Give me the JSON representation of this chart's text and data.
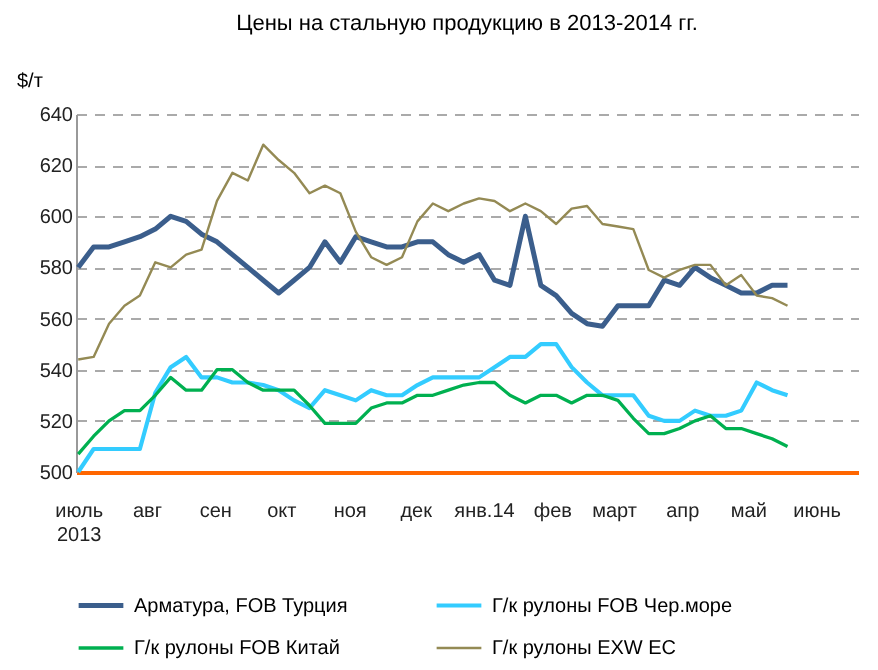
{
  "chart_data": {
    "type": "line",
    "title": "Цены на стальную продукцию в 2013-2014 гг.",
    "ylabel": "$/т",
    "x": [
      "2013-07-01",
      "2013-07-08",
      "2013-07-15",
      "2013-07-22",
      "2013-07-29",
      "2013-08-05",
      "2013-08-12",
      "2013-08-19",
      "2013-08-26",
      "2013-09-02",
      "2013-09-09",
      "2013-09-16",
      "2013-09-23",
      "2013-09-30",
      "2013-10-07",
      "2013-10-14",
      "2013-10-21",
      "2013-10-28",
      "2013-11-04",
      "2013-11-11",
      "2013-11-18",
      "2013-11-25",
      "2013-12-02",
      "2013-12-09",
      "2013-12-16",
      "2013-12-23",
      "2013-12-30",
      "2014-01-06",
      "2014-01-13",
      "2014-01-20",
      "2014-01-27",
      "2014-02-03",
      "2014-02-10",
      "2014-02-17",
      "2014-02-24",
      "2014-03-03",
      "2014-03-10",
      "2014-03-17",
      "2014-03-24",
      "2014-03-31",
      "2014-04-07",
      "2014-04-14",
      "2014-04-21",
      "2014-04-28",
      "2014-05-05",
      "2014-05-12",
      "2014-05-19"
    ],
    "series": [
      {
        "name": "Арматура, FOB Турция",
        "color": "#3b5e8c",
        "values": [
          580,
          588,
          588,
          590,
          592,
          595,
          600,
          598,
          593,
          590,
          585,
          580,
          575,
          570,
          575,
          580,
          590,
          582,
          592,
          590,
          588,
          588,
          590,
          590,
          585,
          582,
          585,
          575,
          573,
          600,
          573,
          569,
          562,
          558,
          557,
          565,
          565,
          565,
          575,
          573,
          580,
          576,
          573,
          570,
          570,
          573,
          573
        ]
      },
      {
        "name": "Г/к рулоны FOB Чер.море",
        "color": "#33ccff",
        "values": [
          500,
          509,
          509,
          509,
          509,
          531,
          541,
          545,
          537,
          537,
          535,
          535,
          534,
          532,
          528,
          525,
          532,
          530,
          528,
          532,
          530,
          530,
          534,
          537,
          537,
          537,
          537,
          541,
          545,
          545,
          550,
          550,
          541,
          535,
          530,
          530,
          530,
          522,
          520,
          520,
          524,
          522,
          522,
          524,
          535,
          532,
          530
        ]
      },
      {
        "name": "Г/к рулоны FOB Китай",
        "color": "#00b050",
        "values": [
          507,
          514,
          520,
          524,
          524,
          530,
          537,
          532,
          532,
          540,
          540,
          535,
          532,
          532,
          532,
          526,
          519,
          519,
          519,
          525,
          527,
          527,
          530,
          530,
          532,
          534,
          535,
          535,
          530,
          527,
          530,
          530,
          527,
          530,
          530,
          528,
          521,
          515,
          515,
          517,
          520,
          522,
          517,
          517,
          515,
          513,
          510
        ]
      },
      {
        "name": "Г/к рулоны EXW ЕС",
        "color": "#948a54",
        "values": [
          544,
          545,
          558,
          565,
          569,
          582,
          580,
          585,
          587,
          606,
          617,
          614,
          628,
          622,
          617,
          609,
          612,
          609,
          594,
          584,
          581,
          584,
          598,
          605,
          602,
          605,
          607,
          606,
          602,
          605,
          602,
          597,
          603,
          604,
          597,
          596,
          595,
          579,
          576,
          579,
          581,
          581,
          573,
          577,
          569,
          568,
          565
        ]
      }
    ],
    "xlim": [
      "2013-06-30",
      "2014-06-20"
    ],
    "xticks": [
      {
        "value": "2013-07-01",
        "label": "июль\n2013"
      },
      {
        "value": "2013-08-01",
        "label": "авг"
      },
      {
        "value": "2013-09-01",
        "label": "сен"
      },
      {
        "value": "2013-10-01",
        "label": "окт"
      },
      {
        "value": "2013-11-01",
        "label": "ноя"
      },
      {
        "value": "2013-12-01",
        "label": "дек"
      },
      {
        "value": "2014-01-01",
        "label": "янв.14"
      },
      {
        "value": "2014-02-01",
        "label": "фев"
      },
      {
        "value": "2014-03-01",
        "label": "март"
      },
      {
        "value": "2014-04-01",
        "label": "апр"
      },
      {
        "value": "2014-05-01",
        "label": "май"
      },
      {
        "value": "2014-06-01",
        "label": "июнь"
      }
    ],
    "ylim": [
      500,
      640
    ],
    "yticks": [
      500,
      520,
      540,
      560,
      580,
      600,
      620,
      640
    ],
    "grid": "y",
    "legend": "bottom"
  }
}
